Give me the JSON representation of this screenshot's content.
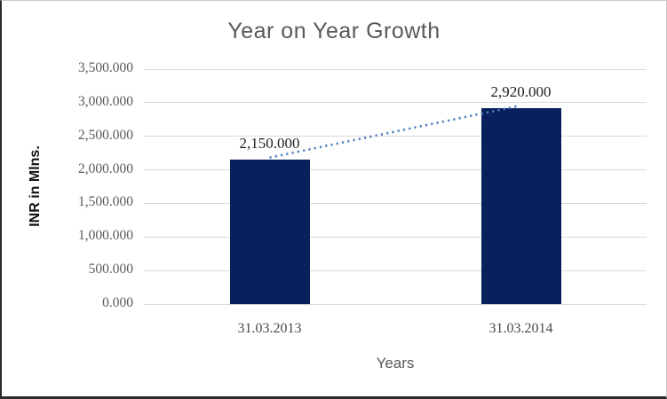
{
  "chart_data": {
    "type": "bar",
    "title": "Year on Year Growth",
    "xlabel": "Years",
    "ylabel": "INR in Mlns.",
    "categories": [
      "31.03.2013",
      "31.03.2014"
    ],
    "values": [
      2150,
      2920
    ],
    "data_labels": [
      "2,150.000",
      "2,920.000"
    ],
    "ylim": [
      0,
      3500
    ],
    "ytick_step": 500,
    "ytick_labels": [
      "0.000",
      "500.000",
      "1,000.000",
      "1,500.000",
      "2,000.000",
      "2,500.000",
      "3,000.000",
      "3,500.000"
    ],
    "grid": true,
    "legend": "none",
    "trendline": {
      "style": "dotted",
      "from_label": "31.03.2013",
      "to_label": "31.03.2014"
    },
    "colors": {
      "bar": "#08215c",
      "trendline": "#4d7ec0",
      "gridline": "#d9d9d9",
      "title_text": "#595959",
      "tick_text": "#595959",
      "category_text": "#4a4a4a",
      "data_label_text": "#1f1f1f",
      "axis_title_text": "#111111"
    }
  }
}
